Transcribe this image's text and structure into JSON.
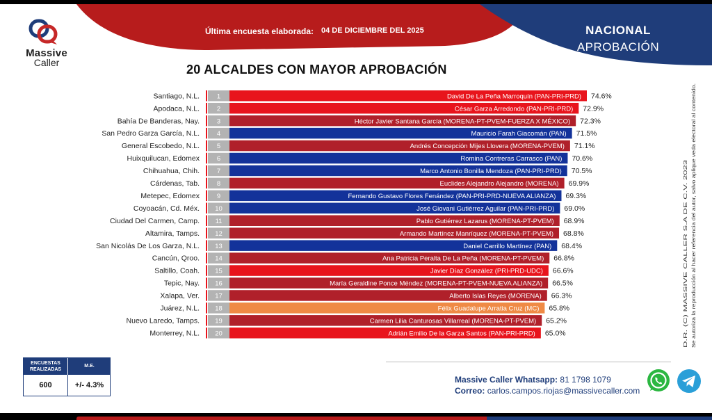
{
  "brand": {
    "name_line1": "Massive",
    "name_line2": "Caller"
  },
  "header": {
    "survey_label": "Última encuesta elaborada:",
    "survey_date": "04 DE DICIEMBRE DEL 2025",
    "scope": "NACIONAL",
    "metric": "APROBACIÓN"
  },
  "side_note": {
    "line1": "D.R. (C) MASSIVE CALLER S.A DE C.V. 2023",
    "line2": "Se autoriza la reproducción al hacer referencia del autor, salvo aplique veda electoral al contenido."
  },
  "stats": {
    "surveys_label": "ENCUESTAS REALIZADAS",
    "surveys_value": "600",
    "me_label": "M.E.",
    "me_value": "+/- 4.3%"
  },
  "contact": {
    "whatsapp_label": "Massive Caller Whatsapp:",
    "whatsapp_number": "81 1798 1079",
    "email_label": "Correo:",
    "email": "carlos.campos.riojas@massivecaller.com"
  },
  "colors": {
    "red": "#e8141c",
    "dark_red": "#b0202a",
    "blue": "#13329a",
    "orange": "#ef8a45",
    "navy": "#1f3d7a",
    "rank_gray": "#b3b3b3"
  },
  "chart_data": {
    "type": "bar",
    "orientation": "horizontal",
    "title": "20 ALCALDES CON MAYOR APROBACIÓN",
    "xlim": [
      0,
      74.6
    ],
    "value_suffix": "%",
    "rows": [
      {
        "rank": "1",
        "city": "Santiago, N.L.",
        "name": "David De La Peña Marroquín (PAN-PRI-PRD)",
        "value": 74.6,
        "value_label": "74.6%",
        "color": "#e8141c"
      },
      {
        "rank": "2",
        "city": "Apodaca, N.L.",
        "name": "César Garza Arredondo (PAN-PRI-PRD)",
        "value": 72.9,
        "value_label": "72.9%",
        "color": "#e8141c"
      },
      {
        "rank": "3",
        "city": "Bahía De Banderas, Nay.",
        "name": "Héctor Javier Santana García (MORENA-PT-PVEM-FUERZA X MÉXICO)",
        "value": 72.3,
        "value_label": "72.3%",
        "color": "#b0202a"
      },
      {
        "rank": "4",
        "city": "San Pedro Garza García, N.L.",
        "name": "Mauricio Farah Giacomán (PAN)",
        "value": 71.5,
        "value_label": "71.5%",
        "color": "#13329a"
      },
      {
        "rank": "5",
        "city": "General Escobedo, N.L.",
        "name": "Andrés Concepción Mijes Llovera (MORENA-PVEM)",
        "value": 71.1,
        "value_label": "71.1%",
        "color": "#b0202a"
      },
      {
        "rank": "6",
        "city": "Huixquilucan, Edomex",
        "name": "Romina Contreras Carrasco  (PAN)",
        "value": 70.6,
        "value_label": "70.6%",
        "color": "#13329a"
      },
      {
        "rank": "7",
        "city": "Chihuahua, Chih.",
        "name": "Marco Antonio Bonilla Mendoza (PAN-PRI-PRD)",
        "value": 70.5,
        "value_label": "70.5%",
        "color": "#13329a"
      },
      {
        "rank": "8",
        "city": "Cárdenas, Tab.",
        "name": "Euclides Alejandro Alejandro (MORENA)",
        "value": 69.9,
        "value_label": "69.9%",
        "color": "#b0202a"
      },
      {
        "rank": "9",
        "city": "Metepec, Edomex",
        "name": "Fernando Gustavo Flores Fenández (PAN-PRI-PRD-NUEVA ALIANZA)",
        "value": 69.3,
        "value_label": "69.3%",
        "color": "#13329a"
      },
      {
        "rank": "10",
        "city": "Coyoacán, Cd. Méx.",
        "name": "José Giovani Gutiérrez Aguilar (PAN-PRI-PRD)",
        "value": 69.0,
        "value_label": "69.0%",
        "color": "#13329a"
      },
      {
        "rank": "11",
        "city": "Ciudad Del Carmen, Camp.",
        "name": "Pablo Gutiérrez Lazarus (MORENA-PT-PVEM)",
        "value": 68.9,
        "value_label": "68.9%",
        "color": "#b0202a"
      },
      {
        "rank": "12",
        "city": "Altamira, Tamps.",
        "name": "Armando Martínez Manríquez (MORENA-PT-PVEM)",
        "value": 68.8,
        "value_label": "68.8%",
        "color": "#b0202a"
      },
      {
        "rank": "13",
        "city": "San Nicolás De Los Garza, N.L.",
        "name": "Daniel Carrillo Martínez (PAN)",
        "value": 68.4,
        "value_label": "68.4%",
        "color": "#13329a"
      },
      {
        "rank": "14",
        "city": "Cancún, Qroo.",
        "name": "Ana Patricia Peralta De La Peña (MORENA-PT-PVEM)",
        "value": 66.8,
        "value_label": "66.8%",
        "color": "#b0202a"
      },
      {
        "rank": "15",
        "city": "Saltillo, Coah.",
        "name": "Javier Díaz González (PRI-PRD-UDC)",
        "value": 66.6,
        "value_label": "66.6%",
        "color": "#e8141c"
      },
      {
        "rank": "16",
        "city": "Tepic, Nay.",
        "name": "María Geraldine Ponce Méndez (MORENA-PT-PVEM-NUEVA ALIANZA)",
        "value": 66.5,
        "value_label": "66.5%",
        "color": "#b0202a"
      },
      {
        "rank": "17",
        "city": "Xalapa, Ver.",
        "name": "Alberto Islas Reyes (MORENA)",
        "value": 66.3,
        "value_label": "66.3%",
        "color": "#b0202a"
      },
      {
        "rank": "18",
        "city": "Juárez, N.L.",
        "name": "Félix Guadalupe Arratia Cruz (MC)",
        "value": 65.8,
        "value_label": "65.8%",
        "color": "#ef8a45"
      },
      {
        "rank": "19",
        "city": "Nuevo Laredo, Tamps.",
        "name": "Carmen Lilia Canturosas Villarreal (MORENA-PT-PVEM)",
        "value": 65.2,
        "value_label": "65.2%",
        "color": "#b0202a"
      },
      {
        "rank": "20",
        "city": "Monterrey, N.L.",
        "name": "Adrián Emilio De la Garza Santos (PAN-PRI-PRD)",
        "value": 65.0,
        "value_label": "65.0%",
        "color": "#e8141c"
      }
    ]
  }
}
